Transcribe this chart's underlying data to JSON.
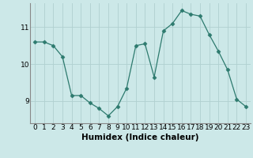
{
  "x": [
    0,
    1,
    2,
    3,
    4,
    5,
    6,
    7,
    8,
    9,
    10,
    11,
    12,
    13,
    14,
    15,
    16,
    17,
    18,
    19,
    20,
    21,
    22,
    23
  ],
  "y": [
    10.6,
    10.6,
    10.5,
    10.2,
    9.15,
    9.15,
    8.95,
    8.8,
    8.6,
    8.85,
    9.35,
    10.5,
    10.55,
    9.65,
    10.9,
    11.1,
    11.45,
    11.35,
    11.3,
    10.8,
    10.35,
    9.85,
    9.05,
    8.85
  ],
  "line_color": "#2d7a6e",
  "marker": "D",
  "marker_size": 2.5,
  "bg_color": "#cce8e8",
  "grid_color": "#b0d0d0",
  "xlabel": "Humidex (Indice chaleur)",
  "xlim": [
    -0.5,
    23.5
  ],
  "ylim": [
    8.4,
    11.65
  ],
  "yticks": [
    9,
    10,
    11
  ],
  "xlabel_fontsize": 7.5,
  "tick_fontsize": 6.5
}
